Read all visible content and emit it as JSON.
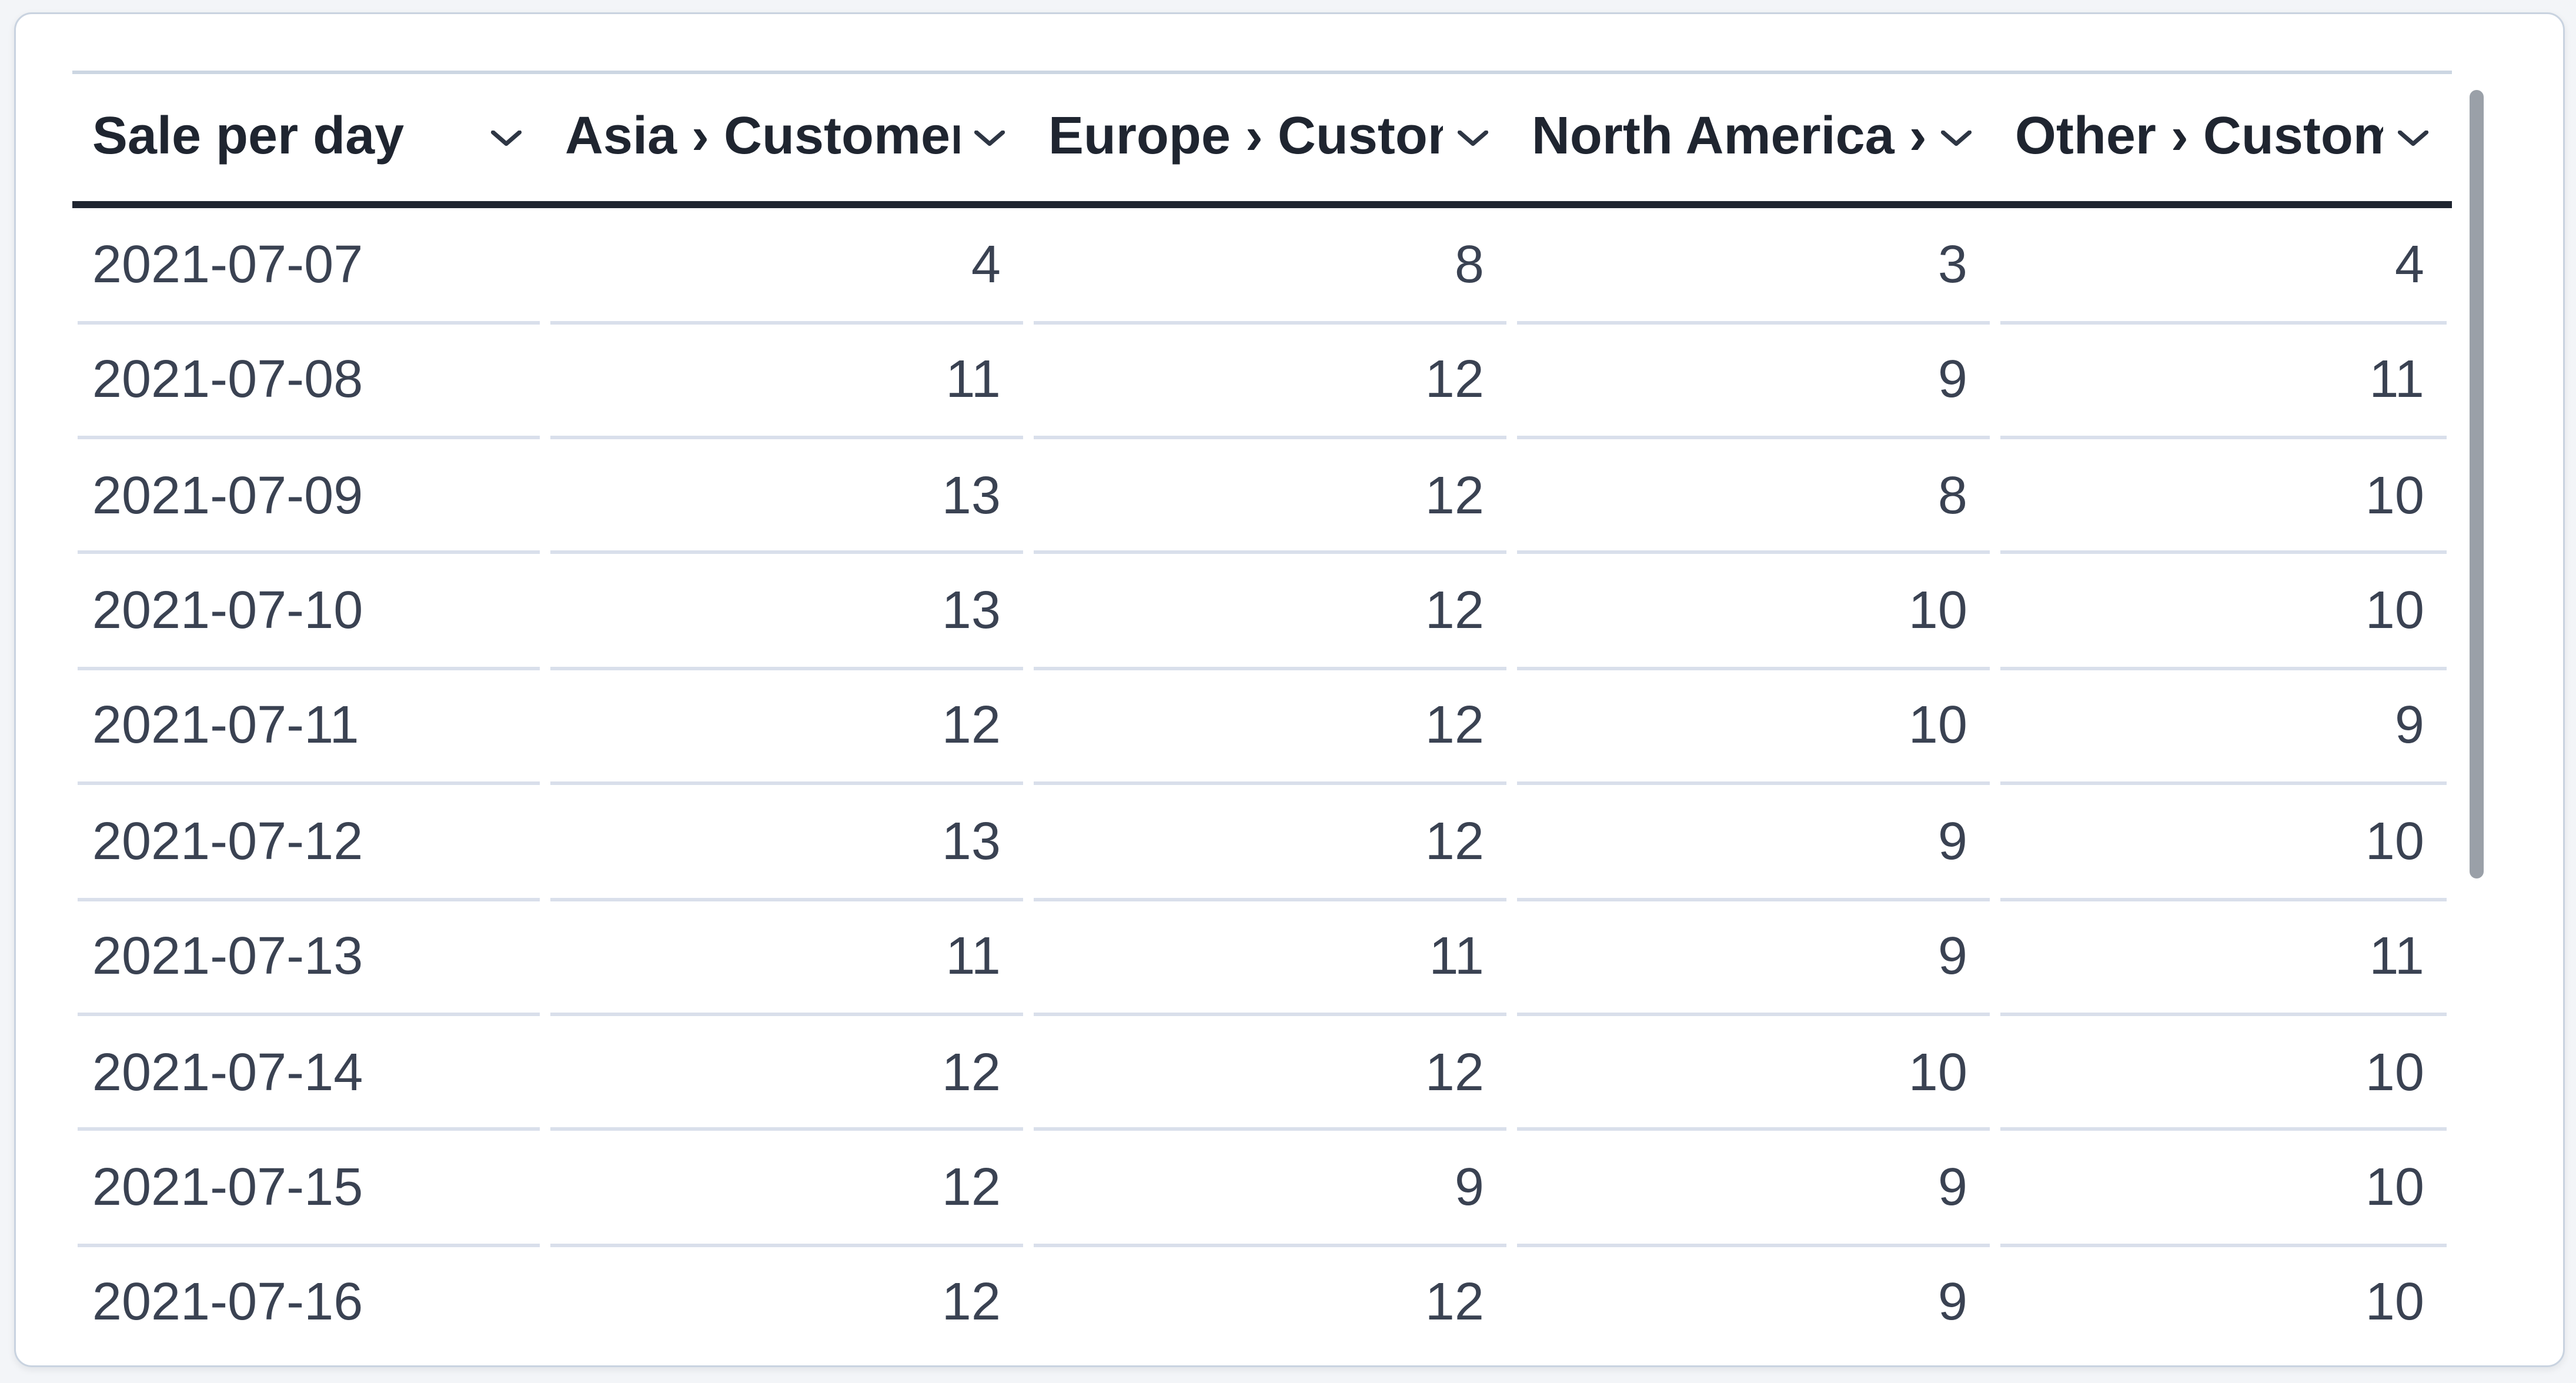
{
  "card": {
    "kind": "table-visualization"
  },
  "table": {
    "columns": [
      {
        "id": "date",
        "label": "Sale per day",
        "align": "left",
        "sort_icon": "chevron-down"
      },
      {
        "id": "asia",
        "label": "Asia › Customers",
        "align": "right",
        "sort_icon": "chevron-down"
      },
      {
        "id": "europe",
        "label": "Europe › Customers",
        "align": "right",
        "sort_icon": "chevron-down"
      },
      {
        "id": "north-america",
        "label": "North America › Customers",
        "align": "right",
        "sort_icon": "chevron-down"
      },
      {
        "id": "other",
        "label": "Other › Customers",
        "align": "right",
        "sort_icon": "chevron-down"
      }
    ],
    "rows": [
      [
        "2021-07-07",
        "4",
        "8",
        "3",
        "4"
      ],
      [
        "2021-07-08",
        "11",
        "12",
        "9",
        "11"
      ],
      [
        "2021-07-09",
        "13",
        "12",
        "8",
        "10"
      ],
      [
        "2021-07-10",
        "13",
        "12",
        "10",
        "10"
      ],
      [
        "2021-07-11",
        "12",
        "12",
        "10",
        "9"
      ],
      [
        "2021-07-12",
        "13",
        "12",
        "9",
        "10"
      ],
      [
        "2021-07-13",
        "11",
        "11",
        "9",
        "11"
      ],
      [
        "2021-07-14",
        "12",
        "12",
        "10",
        "10"
      ],
      [
        "2021-07-15",
        "12",
        "9",
        "9",
        "10"
      ],
      [
        "2021-07-16",
        "12",
        "12",
        "9",
        "10"
      ]
    ]
  },
  "scrollbar": {
    "orientation": "vertical",
    "visible": true
  },
  "colors": {
    "page_background": "#f3f5f8",
    "card_background": "#ffffff",
    "card_border": "#c9d3e0",
    "header_text": "#1f2530",
    "header_underline": "#1f2530",
    "top_rule": "#ccd6e2",
    "cell_text": "#3a4252",
    "row_separator": "#d9dfeb",
    "scrollbar_thumb": "#9aa0a8"
  }
}
